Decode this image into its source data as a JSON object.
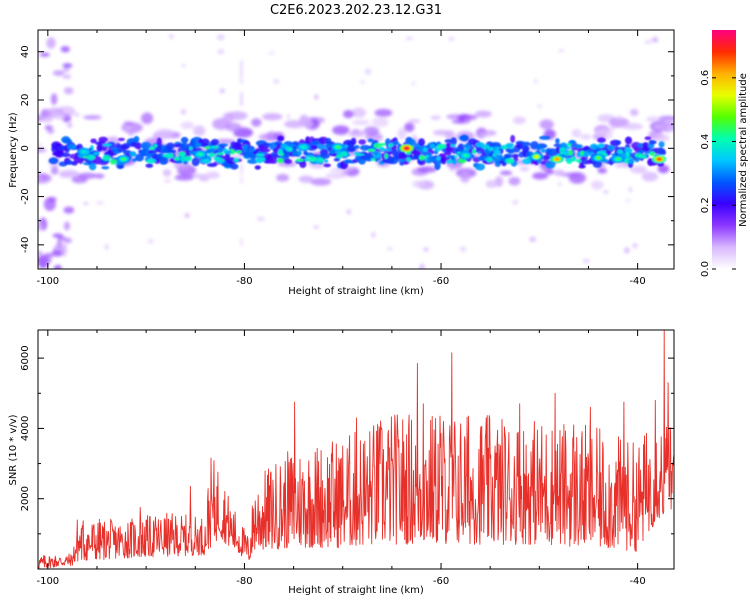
{
  "title": "C2E6.2023.202.23.12.G31",
  "chart_data": [
    {
      "type": "heatmap",
      "xlabel": "Height of straight line (km)",
      "ylabel": "Frequency (Hz)",
      "xlim": [
        -101,
        -36.3
      ],
      "ylim": [
        -50,
        49
      ],
      "xticks": [
        -100,
        -80,
        -60,
        -40
      ],
      "yticks": [
        -40,
        -20,
        0,
        20,
        40
      ],
      "colorbar": {
        "label": "Normalized spectral amplitude",
        "range": [
          0,
          0.75
        ],
        "ticks": [
          0.0,
          0.2,
          0.4,
          0.6
        ],
        "palette": [
          "#ffffff",
          "#d9b8ff",
          "#8c38ff",
          "#3a00ff",
          "#0057ff",
          "#00c8ff",
          "#00ffb0",
          "#54ff00",
          "#e8ff00",
          "#ffb000",
          "#ff2a00",
          "#ff0080"
        ]
      },
      "band": {
        "center_frequency_hz": 0,
        "half_width_hz": 6,
        "peaks": [
          {
            "x": -63.5,
            "y": 0,
            "value": 0.72
          },
          {
            "x": -48.2,
            "y": -4.5,
            "value": 0.62
          },
          {
            "x": -37.8,
            "y": -4.5,
            "value": 0.66
          },
          {
            "x": -50.3,
            "y": -3.5,
            "value": 0.55
          },
          {
            "x": -92.3,
            "y": -4.5,
            "value": 0.45
          },
          {
            "x": -84.5,
            "y": -2.5,
            "value": 0.42
          },
          {
            "x": -96.3,
            "y": -1.5,
            "value": 0.38
          },
          {
            "x": -74.0,
            "y": 0.5,
            "value": 0.4
          },
          {
            "x": -70.5,
            "y": 0.5,
            "value": 0.45
          },
          {
            "x": -57.5,
            "y": -3,
            "value": 0.42
          },
          {
            "x": -44.0,
            "y": -4,
            "value": 0.48
          },
          {
            "x": -42.0,
            "y": -4.5,
            "value": 0.45
          }
        ]
      },
      "grid": false
    },
    {
      "type": "line",
      "xlabel": "Height of straight line (km)",
      "ylabel": "SNR (10 * v/v)",
      "xlim": [
        -101,
        -36.3
      ],
      "ylim": [
        0,
        6800
      ],
      "xticks": [
        -100,
        -80,
        -60,
        -40
      ],
      "yticks": [
        2000,
        4000,
        6000
      ],
      "color": "#e8302a",
      "grid": false,
      "x_step": 0.05,
      "envelope": [
        {
          "x": -101,
          "low": 0,
          "high": 400
        },
        {
          "x": -97.5,
          "low": 100,
          "high": 450
        },
        {
          "x": -97,
          "low": 200,
          "high": 1500
        },
        {
          "x": -93,
          "low": 300,
          "high": 1400
        },
        {
          "x": -88,
          "low": 350,
          "high": 1600
        },
        {
          "x": -84,
          "low": 400,
          "high": 1500
        },
        {
          "x": -83.5,
          "low": 600,
          "high": 3200
        },
        {
          "x": -82.5,
          "low": 900,
          "high": 3000
        },
        {
          "x": -81.5,
          "low": 600,
          "high": 2000
        },
        {
          "x": -79.5,
          "low": 200,
          "high": 900
        },
        {
          "x": -79,
          "low": 500,
          "high": 2600
        },
        {
          "x": -75,
          "low": 600,
          "high": 3500
        },
        {
          "x": -70,
          "low": 600,
          "high": 3800
        },
        {
          "x": -65,
          "low": 700,
          "high": 4500
        },
        {
          "x": -60,
          "low": 700,
          "high": 4500
        },
        {
          "x": -55,
          "low": 700,
          "high": 4400
        },
        {
          "x": -50,
          "low": 700,
          "high": 4300
        },
        {
          "x": -45,
          "low": 600,
          "high": 4100
        },
        {
          "x": -40,
          "low": 500,
          "high": 3600
        },
        {
          "x": -38,
          "low": 1400,
          "high": 4500
        },
        {
          "x": -36.3,
          "low": 1500,
          "high": 4000
        }
      ],
      "spikes": [
        {
          "x": -74.9,
          "y": 4750
        },
        {
          "x": -62.4,
          "y": 5850
        },
        {
          "x": -61.8,
          "y": 4700
        },
        {
          "x": -58.9,
          "y": 6150
        },
        {
          "x": -60.1,
          "y": 4350
        },
        {
          "x": -52.0,
          "y": 4700
        },
        {
          "x": -48.4,
          "y": 5000
        },
        {
          "x": -46.5,
          "y": 4100
        },
        {
          "x": -44.8,
          "y": 4600
        },
        {
          "x": -41.4,
          "y": 4750
        },
        {
          "x": -38.2,
          "y": 4800
        },
        {
          "x": -37.3,
          "y": 6800
        },
        {
          "x": -36.9,
          "y": 5300
        },
        {
          "x": -85.5,
          "y": 2350
        },
        {
          "x": -90.6,
          "y": 1750
        },
        {
          "x": -68.6,
          "y": 4300
        },
        {
          "x": -66.3,
          "y": 4050
        },
        {
          "x": -57.2,
          "y": 4350
        },
        {
          "x": -55.4,
          "y": 4300
        }
      ]
    }
  ]
}
